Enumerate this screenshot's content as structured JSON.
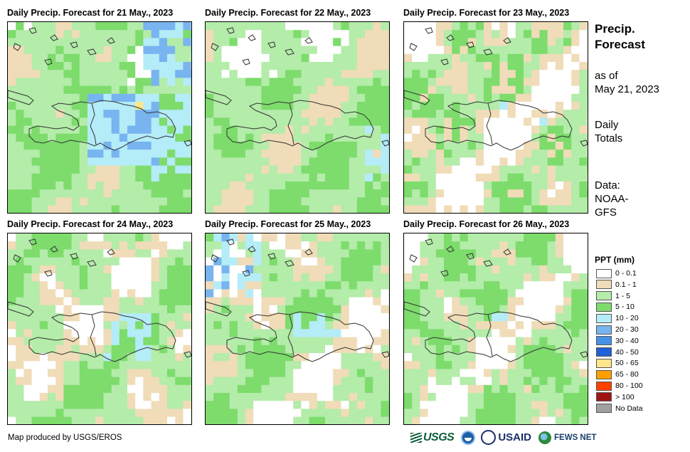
{
  "panels": [
    {
      "title": "Daily Precip. Forecast for 21 May., 2023",
      "pattern": 1
    },
    {
      "title": "Daily Precip. Forecast for 22 May., 2023",
      "pattern": 2
    },
    {
      "title": "Daily Precip. Forecast for 23 May., 2023",
      "pattern": 3
    },
    {
      "title": "Daily Precip. Forecast for 24 May., 2023",
      "pattern": 4
    },
    {
      "title": "Daily Precip. Forecast for 25 May., 2023",
      "pattern": 5
    },
    {
      "title": "Daily Precip. Forecast for 26 May., 2023",
      "pattern": 6
    }
  ],
  "side": {
    "title_line1": "Precip.",
    "title_line2": "Forecast",
    "asof_line1": "as of",
    "asof_line2": "May 21, 2023",
    "totals_line1": "Daily",
    "totals_line2": "Totals",
    "data_line1": "Data:",
    "data_line2": "NOAA-",
    "data_line3": "GFS"
  },
  "legend": {
    "title": "PPT (mm)",
    "items": [
      {
        "label": "0 - 0.1",
        "color": "#ffffff"
      },
      {
        "label": "0.1 - 1",
        "color": "#f0dcb8"
      },
      {
        "label": "1 - 5",
        "color": "#b4ecaa"
      },
      {
        "label": "5 - 10",
        "color": "#7ddc6c"
      },
      {
        "label": "10 - 20",
        "color": "#b4ecf8"
      },
      {
        "label": "20 - 30",
        "color": "#78b4f0"
      },
      {
        "label": "30 - 40",
        "color": "#4690e6"
      },
      {
        "label": "40 - 50",
        "color": "#2060d8"
      },
      {
        "label": "50 - 65",
        "color": "#ffe68c"
      },
      {
        "label": "65 - 80",
        "color": "#ffa000"
      },
      {
        "label": "80 - 100",
        "color": "#ff4000"
      },
      {
        "label": "> 100",
        "color": "#a01414"
      },
      {
        "label": "No Data",
        "color": "#a0a0a0"
      }
    ]
  },
  "credit": "Map produced by USGS/EROS",
  "logos": {
    "usgs": "USGS",
    "usaid": "USAID",
    "fews": "FEWS NET"
  }
}
